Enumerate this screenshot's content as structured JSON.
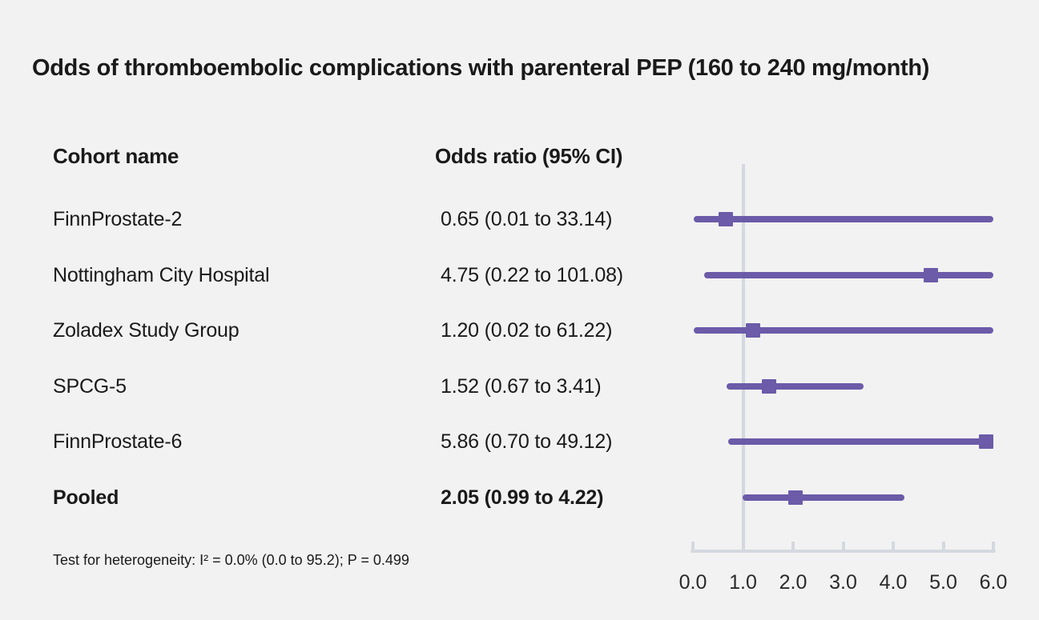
{
  "columns": {
    "cohort": "Cohort name",
    "odds": "Odds ratio (95% CI)"
  },
  "colors": {
    "background": "#f2f2f2",
    "text": "#1a1a1a",
    "series_purple": "#6b5ba8",
    "axis_gray": "#d4d8df"
  },
  "chart_data": {
    "type": "forest",
    "title": "Odds of thromboembolic complications with parenteral PEP (160 to 240 mg/month)",
    "xlabel": "",
    "axis": {
      "min": 0.0,
      "max": 6.0,
      "ticks": [
        "0.0",
        "1.0",
        "2.0",
        "3.0",
        "4.0",
        "5.0",
        "6.0"
      ],
      "tick_values": [
        0,
        1,
        2,
        3,
        4,
        5,
        6
      ],
      "reference_line": 1.0,
      "grid": false
    },
    "rows": [
      {
        "cohort": "FinnProstate-2",
        "label": "0.65 (0.01 to 33.14)",
        "or": 0.65,
        "lo": 0.01,
        "hi": 33.14,
        "bold": false
      },
      {
        "cohort": "Nottingham City Hospital",
        "label": "4.75 (0.22 to 101.08)",
        "or": 4.75,
        "lo": 0.22,
        "hi": 101.08,
        "bold": false
      },
      {
        "cohort": "Zoladex Study Group",
        "label": "1.20 (0.02 to 61.22)",
        "or": 1.2,
        "lo": 0.02,
        "hi": 61.22,
        "bold": false
      },
      {
        "cohort": "SPCG-5",
        "label": "1.52 (0.67 to 3.41)",
        "or": 1.52,
        "lo": 0.67,
        "hi": 3.41,
        "bold": false
      },
      {
        "cohort": "FinnProstate-6",
        "label": "5.86 (0.70 to 49.12)",
        "or": 5.86,
        "lo": 0.7,
        "hi": 49.12,
        "bold": false
      },
      {
        "cohort": "Pooled",
        "label": "2.05 (0.99 to 4.22)",
        "or": 2.05,
        "lo": 0.99,
        "hi": 4.22,
        "bold": true
      }
    ],
    "heterogeneity": "Test for heterogeneity: I² = 0.0% (0.0 to 95.2); P = 0.499"
  }
}
